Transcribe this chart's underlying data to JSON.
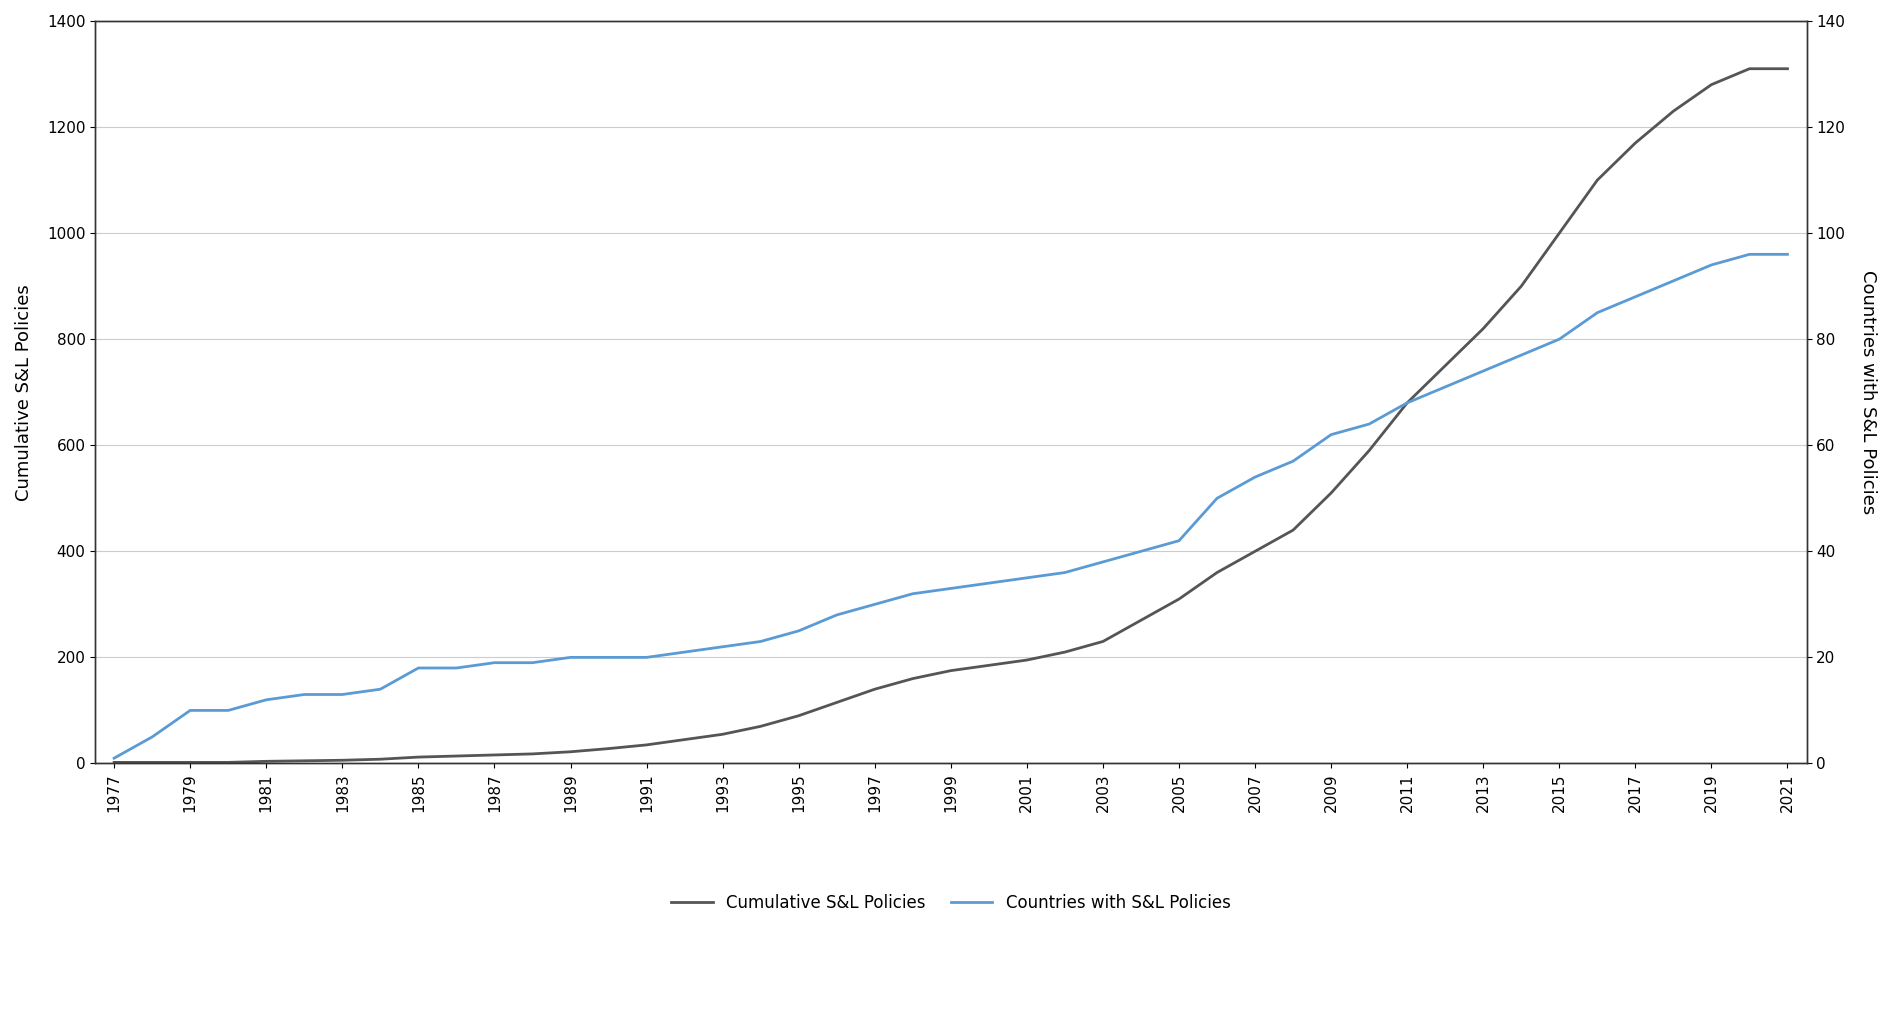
{
  "years": [
    1977,
    1978,
    1979,
    1980,
    1981,
    1982,
    1983,
    1984,
    1985,
    1986,
    1987,
    1988,
    1989,
    1990,
    1991,
    1992,
    1993,
    1994,
    1995,
    1996,
    1997,
    1998,
    1999,
    2000,
    2001,
    2002,
    2003,
    2004,
    2005,
    2006,
    2007,
    2008,
    2009,
    2010,
    2011,
    2012,
    2013,
    2014,
    2015,
    2016,
    2017,
    2018,
    2019,
    2020,
    2021
  ],
  "cumulative_policies": [
    2,
    2,
    2,
    2,
    4,
    5,
    6,
    8,
    12,
    14,
    16,
    18,
    22,
    28,
    35,
    45,
    55,
    70,
    90,
    115,
    140,
    160,
    175,
    185,
    195,
    210,
    230,
    270,
    310,
    360,
    400,
    440,
    510,
    590,
    680,
    750,
    820,
    900,
    1000,
    1100,
    1170,
    1230,
    1280,
    1310,
    1310
  ],
  "countries_with_policies": [
    1,
    5,
    10,
    10,
    12,
    13,
    13,
    14,
    18,
    18,
    19,
    19,
    20,
    20,
    20,
    21,
    22,
    23,
    25,
    28,
    30,
    32,
    33,
    34,
    35,
    36,
    38,
    40,
    42,
    50,
    54,
    57,
    62,
    64,
    68,
    71,
    74,
    77,
    80,
    85,
    88,
    91,
    94,
    96,
    96
  ],
  "left_ylim": [
    0,
    1400
  ],
  "right_ylim": [
    0,
    140
  ],
  "left_yticks": [
    0,
    200,
    400,
    600,
    800,
    1000,
    1200,
    1400
  ],
  "right_yticks": [
    0,
    20,
    40,
    60,
    80,
    100,
    120,
    140
  ],
  "left_ylabel": "Cumulative S&L Policies",
  "right_ylabel": "Countries with S&L Policies",
  "line1_color": "#555555",
  "line2_color": "#5b9bd5",
  "line1_label": "Cumulative S&L Policies",
  "line2_label": "Countries with S&L Policies",
  "line_width": 2.0,
  "background_color": "#ffffff",
  "grid_color": "#cccccc",
  "x_tick_every": 2
}
